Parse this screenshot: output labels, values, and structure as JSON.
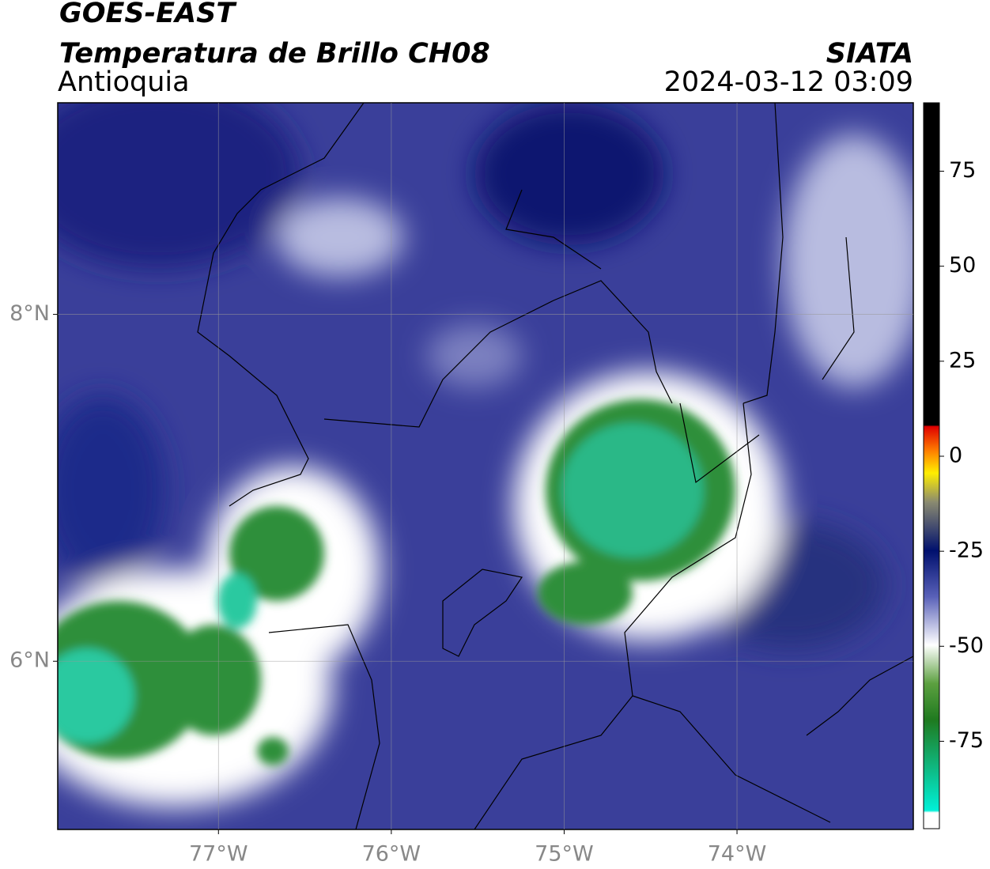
{
  "header": {
    "satellite": "GOES-EAST",
    "product": "Temperatura de Brillo CH08",
    "agency": "SIATA",
    "region": "Antioquia",
    "datetime": "2024-03-12 03:09"
  },
  "map": {
    "xlim": [
      -77.93,
      -72.98
    ],
    "ylim": [
      5.03,
      9.22
    ],
    "xticks": [
      {
        "value": -77,
        "label": "77°W"
      },
      {
        "value": -76,
        "label": "76°W"
      },
      {
        "value": -75,
        "label": "75°W"
      },
      {
        "value": -74,
        "label": "74°W"
      }
    ],
    "yticks": [
      {
        "value": 8,
        "label": "8°N"
      },
      {
        "value": 6,
        "label": "6°N"
      }
    ],
    "grid": true
  },
  "colorbar": {
    "lim": [
      -98,
      93
    ],
    "ticks": [
      75,
      50,
      25,
      0,
      -25,
      -50,
      -75
    ]
  }
}
